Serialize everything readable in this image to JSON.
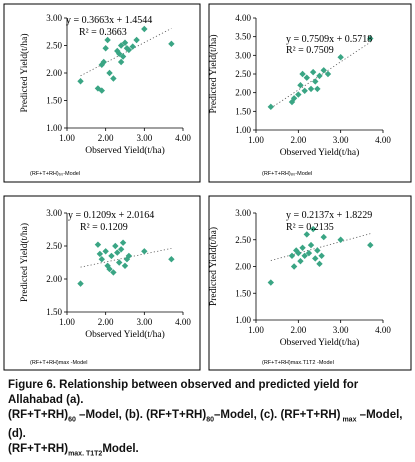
{
  "figure_caption": {
    "label": "Figure 6.",
    "text_lines": [
      "Relationship between observed and predicted yield for Allahabad (a).",
      "(RF+T+RH)",
      "60",
      " –Model, (b). (RF+T+RH)",
      "80",
      "–Model, (c). (RF+T+RH)",
      " max",
      " –Model, (d).",
      "(RF+T+RH)",
      "max. T1T2",
      "Model."
    ]
  },
  "chart_data": [
    {
      "type": "scatter",
      "panel_caption": "(RF+T+RH)₆₀-Model",
      "equation": "y = 0.3663x + 1.4544",
      "r2": "R² = 0.3663",
      "xlabel": "Observed Yield(t/ha)",
      "ylabel": "Predicted Yield(t/ha)",
      "xlim": [
        1.0,
        4.0
      ],
      "ylim": [
        1.0,
        3.0
      ],
      "xticks": [
        "1.00",
        "2.00",
        "3.00",
        "4.00"
      ],
      "yticks": [
        "1.00",
        "1.50",
        "2.00",
        "2.50",
        "3.00"
      ],
      "trendline": {
        "slope": 0.3663,
        "intercept": 1.4544
      },
      "marker_color": "#3aa584",
      "points": [
        [
          1.35,
          1.85
        ],
        [
          1.8,
          1.72
        ],
        [
          1.9,
          1.68
        ],
        [
          1.9,
          2.15
        ],
        [
          1.95,
          2.2
        ],
        [
          2.0,
          2.45
        ],
        [
          2.05,
          2.6
        ],
        [
          2.1,
          2.0
        ],
        [
          2.2,
          1.9
        ],
        [
          2.3,
          2.4
        ],
        [
          2.35,
          2.35
        ],
        [
          2.4,
          2.5
        ],
        [
          2.4,
          2.2
        ],
        [
          2.45,
          2.3
        ],
        [
          2.5,
          2.55
        ],
        [
          2.55,
          2.45
        ],
        [
          2.6,
          2.42
        ],
        [
          2.7,
          2.48
        ],
        [
          2.8,
          2.6
        ],
        [
          3.0,
          2.8
        ],
        [
          3.7,
          2.53
        ]
      ]
    },
    {
      "type": "scatter",
      "panel_caption": "(RF+T+RH)₈₀-Model",
      "equation": "y = 0.7509x + 0.5718",
      "r2": "R² = 0.7509",
      "xlabel": "Observed Yield(t/ha)",
      "ylabel": "Predicted Yield(t/ha)",
      "xlim": [
        1.0,
        4.0
      ],
      "ylim": [
        1.0,
        4.0
      ],
      "xticks": [
        "1.00",
        "2.00",
        "3.00",
        "4.00"
      ],
      "yticks": [
        "1.00",
        "1.50",
        "2.00",
        "2.50",
        "3.00",
        "3.50",
        "4.00"
      ],
      "trendline": {
        "slope": 0.7509,
        "intercept": 0.5718
      },
      "marker_color": "#3aa584",
      "points": [
        [
          1.35,
          1.62
        ],
        [
          1.85,
          1.75
        ],
        [
          1.9,
          1.85
        ],
        [
          2.0,
          1.95
        ],
        [
          2.05,
          2.2
        ],
        [
          2.1,
          2.5
        ],
        [
          2.15,
          2.05
        ],
        [
          2.2,
          2.4
        ],
        [
          2.3,
          2.1
        ],
        [
          2.35,
          2.55
        ],
        [
          2.4,
          2.3
        ],
        [
          2.45,
          2.1
        ],
        [
          2.5,
          2.45
        ],
        [
          2.6,
          2.6
        ],
        [
          2.7,
          2.5
        ],
        [
          3.0,
          2.95
        ],
        [
          3.7,
          3.45
        ]
      ]
    },
    {
      "type": "scatter",
      "panel_caption": "(RF+T+RH)max -Model",
      "equation": "y = 0.1209x + 2.0164",
      "r2": "R² = 0.1209",
      "xlabel": "Observed Yield(t/ha)",
      "ylabel": "Predicted Yield(t/ha)",
      "xlim": [
        1.0,
        4.0
      ],
      "ylim": [
        1.5,
        3.0
      ],
      "xticks": [
        "1.00",
        "2.00",
        "3.00",
        "4.00"
      ],
      "yticks": [
        "1.50",
        "2.00",
        "2.50",
        "3.00"
      ],
      "trendline": {
        "slope": 0.1209,
        "intercept": 2.0164
      },
      "marker_color": "#3aa584",
      "points": [
        [
          1.35,
          1.93
        ],
        [
          1.8,
          2.52
        ],
        [
          1.85,
          2.38
        ],
        [
          1.9,
          2.3
        ],
        [
          2.0,
          2.42
        ],
        [
          2.05,
          2.2
        ],
        [
          2.1,
          2.15
        ],
        [
          2.15,
          2.35
        ],
        [
          2.2,
          2.1
        ],
        [
          2.25,
          2.5
        ],
        [
          2.3,
          2.4
        ],
        [
          2.35,
          2.25
        ],
        [
          2.4,
          2.45
        ],
        [
          2.45,
          2.55
        ],
        [
          2.5,
          2.2
        ],
        [
          2.55,
          2.3
        ],
        [
          2.6,
          2.35
        ],
        [
          3.0,
          2.42
        ],
        [
          3.7,
          2.3
        ]
      ]
    },
    {
      "type": "scatter",
      "panel_caption": "(RF+T+RH)max.T1T2 -Model",
      "equation": "y = 0.2137x + 1.8229",
      "r2": "R² = 0.2135",
      "xlabel": "Observed Yield(t/ha)",
      "ylabel": "Predicted Yield(t/ha)",
      "xlim": [
        1.0,
        4.0
      ],
      "ylim": [
        1.0,
        3.0
      ],
      "xticks": [
        "1.00",
        "2.00",
        "3.00",
        "4.00"
      ],
      "yticks": [
        "1.00",
        "1.50",
        "2.00",
        "2.50",
        "3.00"
      ],
      "trendline": {
        "slope": 0.2137,
        "intercept": 1.8229
      },
      "marker_color": "#3aa584",
      "points": [
        [
          1.35,
          1.7
        ],
        [
          1.85,
          2.2
        ],
        [
          1.9,
          2.0
        ],
        [
          1.95,
          2.3
        ],
        [
          2.0,
          2.25
        ],
        [
          2.05,
          2.1
        ],
        [
          2.1,
          2.35
        ],
        [
          2.15,
          2.2
        ],
        [
          2.2,
          2.6
        ],
        [
          2.25,
          2.25
        ],
        [
          2.3,
          2.4
        ],
        [
          2.35,
          2.7
        ],
        [
          2.4,
          2.15
        ],
        [
          2.45,
          2.3
        ],
        [
          2.5,
          2.05
        ],
        [
          2.55,
          2.2
        ],
        [
          2.6,
          2.55
        ],
        [
          3.0,
          2.5
        ],
        [
          3.7,
          2.4
        ]
      ]
    }
  ]
}
